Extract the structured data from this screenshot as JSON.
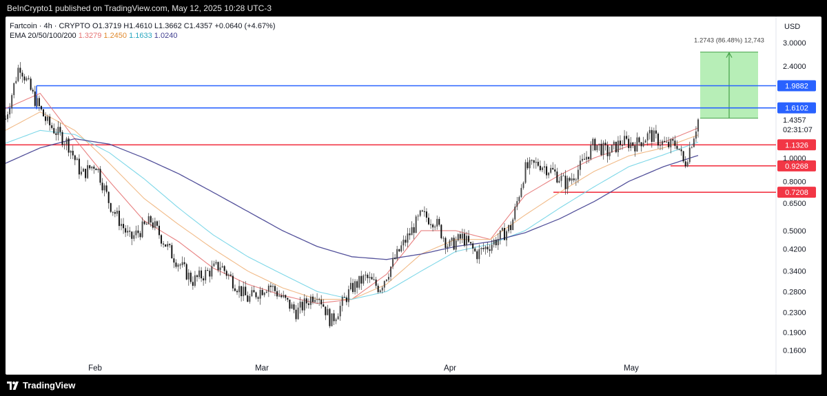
{
  "header": {
    "publisher_line": "BeInCrypto1 published on TradingView.com, May 12, 2025 10:28 UTC-3"
  },
  "footer": {
    "brand": "TradingView",
    "logo_icon": "tradingview-logo-icon"
  },
  "legend": {
    "symbol_line": "Fartcoin · 4h · CRYPTO",
    "open_label": "O",
    "open_value": "1.3719",
    "high_label": "H",
    "high_value": "1.4610",
    "low_label": "L",
    "low_value": "1.3662",
    "close_label": "C",
    "close_value": "1.4357",
    "change": "+0.0640 (+4.67%)",
    "ema_label": "EMA 20/50/100/200",
    "ema_values": [
      "1.3279",
      "1.2450",
      "1.1633",
      "1.0240"
    ]
  },
  "axis": {
    "currency": "USD",
    "price_ticks": [
      "3.0000",
      "2.4000",
      "1.0000",
      "0.8000",
      "0.6500",
      "0.5000",
      "0.4200",
      "0.3400",
      "0.2800",
      "0.2300",
      "0.1900",
      "0.1600"
    ],
    "month_labels": [
      "Feb",
      "Mar",
      "Apr",
      "May"
    ],
    "current_price": "1.4357",
    "countdown": "02:31:07"
  },
  "chart_data": {
    "type": "candlestick",
    "symbol": "Fartcoin",
    "timeframe": "4h",
    "y_scale": "log",
    "y_range": [
      0.14,
      3.6
    ],
    "x_months": [
      "Feb",
      "Mar",
      "Apr",
      "May"
    ],
    "close_path": [
      {
        "t": 0.0,
        "p": 1.45
      },
      {
        "t": 0.02,
        "p": 2.45
      },
      {
        "t": 0.04,
        "p": 1.8
      },
      {
        "t": 0.06,
        "p": 1.4
      },
      {
        "t": 0.09,
        "p": 1.15
      },
      {
        "t": 0.11,
        "p": 0.85
      },
      {
        "t": 0.13,
        "p": 0.95
      },
      {
        "t": 0.15,
        "p": 0.65
      },
      {
        "t": 0.18,
        "p": 0.46
      },
      {
        "t": 0.21,
        "p": 0.55
      },
      {
        "t": 0.24,
        "p": 0.4
      },
      {
        "t": 0.27,
        "p": 0.31
      },
      {
        "t": 0.31,
        "p": 0.36
      },
      {
        "t": 0.35,
        "p": 0.26
      },
      {
        "t": 0.38,
        "p": 0.3
      },
      {
        "t": 0.42,
        "p": 0.23
      },
      {
        "t": 0.45,
        "p": 0.28
      },
      {
        "t": 0.47,
        "p": 0.21
      },
      {
        "t": 0.5,
        "p": 0.29
      },
      {
        "t": 0.52,
        "p": 0.32
      },
      {
        "t": 0.54,
        "p": 0.29
      },
      {
        "t": 0.57,
        "p": 0.42
      },
      {
        "t": 0.6,
        "p": 0.58
      },
      {
        "t": 0.62,
        "p": 0.55
      },
      {
        "t": 0.64,
        "p": 0.43
      },
      {
        "t": 0.66,
        "p": 0.47
      },
      {
        "t": 0.68,
        "p": 0.4
      },
      {
        "t": 0.71,
        "p": 0.46
      },
      {
        "t": 0.73,
        "p": 0.52
      },
      {
        "t": 0.75,
        "p": 0.9
      },
      {
        "t": 0.77,
        "p": 0.95
      },
      {
        "t": 0.79,
        "p": 0.88
      },
      {
        "t": 0.81,
        "p": 0.78
      },
      {
        "t": 0.83,
        "p": 0.92
      },
      {
        "t": 0.85,
        "p": 1.15
      },
      {
        "t": 0.87,
        "p": 1.05
      },
      {
        "t": 0.89,
        "p": 1.17
      },
      {
        "t": 0.91,
        "p": 1.14
      },
      {
        "t": 0.93,
        "p": 1.25
      },
      {
        "t": 0.955,
        "p": 1.12
      },
      {
        "t": 0.97,
        "p": 1.15
      },
      {
        "t": 0.98,
        "p": 0.93
      },
      {
        "t": 0.99,
        "p": 1.15
      },
      {
        "t": 1.0,
        "p": 1.44
      }
    ],
    "ema_series": [
      {
        "name": "EMA 20",
        "value": 1.3279,
        "color": "#e57373",
        "path": [
          {
            "t": 0.0,
            "p": 1.6
          },
          {
            "t": 0.05,
            "p": 1.85
          },
          {
            "t": 0.1,
            "p": 1.2
          },
          {
            "t": 0.15,
            "p": 0.8
          },
          {
            "t": 0.2,
            "p": 0.55
          },
          {
            "t": 0.25,
            "p": 0.45
          },
          {
            "t": 0.3,
            "p": 0.35
          },
          {
            "t": 0.35,
            "p": 0.3
          },
          {
            "t": 0.4,
            "p": 0.27
          },
          {
            "t": 0.45,
            "p": 0.25
          },
          {
            "t": 0.5,
            "p": 0.26
          },
          {
            "t": 0.55,
            "p": 0.33
          },
          {
            "t": 0.6,
            "p": 0.5
          },
          {
            "t": 0.65,
            "p": 0.5
          },
          {
            "t": 0.7,
            "p": 0.46
          },
          {
            "t": 0.75,
            "p": 0.7
          },
          {
            "t": 0.8,
            "p": 0.85
          },
          {
            "t": 0.85,
            "p": 1.0
          },
          {
            "t": 0.9,
            "p": 1.12
          },
          {
            "t": 0.95,
            "p": 1.16
          },
          {
            "t": 1.0,
            "p": 1.33
          }
        ]
      },
      {
        "name": "EMA 50",
        "value": 1.245,
        "color": "#f0b27a",
        "path": [
          {
            "t": 0.0,
            "p": 1.3
          },
          {
            "t": 0.05,
            "p": 1.55
          },
          {
            "t": 0.1,
            "p": 1.3
          },
          {
            "t": 0.15,
            "p": 0.95
          },
          {
            "t": 0.2,
            "p": 0.68
          },
          {
            "t": 0.25,
            "p": 0.53
          },
          {
            "t": 0.3,
            "p": 0.42
          },
          {
            "t": 0.35,
            "p": 0.34
          },
          {
            "t": 0.4,
            "p": 0.29
          },
          {
            "t": 0.45,
            "p": 0.26
          },
          {
            "t": 0.5,
            "p": 0.26
          },
          {
            "t": 0.55,
            "p": 0.3
          },
          {
            "t": 0.6,
            "p": 0.4
          },
          {
            "t": 0.65,
            "p": 0.46
          },
          {
            "t": 0.7,
            "p": 0.46
          },
          {
            "t": 0.75,
            "p": 0.58
          },
          {
            "t": 0.8,
            "p": 0.72
          },
          {
            "t": 0.85,
            "p": 0.88
          },
          {
            "t": 0.9,
            "p": 1.02
          },
          {
            "t": 0.95,
            "p": 1.1
          },
          {
            "t": 1.0,
            "p": 1.245
          }
        ]
      },
      {
        "name": "EMA 100",
        "value": 1.1633,
        "color": "#6fd3e6",
        "path": [
          {
            "t": 0.0,
            "p": 1.15
          },
          {
            "t": 0.05,
            "p": 1.3
          },
          {
            "t": 0.1,
            "p": 1.25
          },
          {
            "t": 0.15,
            "p": 1.05
          },
          {
            "t": 0.2,
            "p": 0.82
          },
          {
            "t": 0.25,
            "p": 0.62
          },
          {
            "t": 0.3,
            "p": 0.48
          },
          {
            "t": 0.35,
            "p": 0.39
          },
          {
            "t": 0.4,
            "p": 0.33
          },
          {
            "t": 0.45,
            "p": 0.28
          },
          {
            "t": 0.5,
            "p": 0.26
          },
          {
            "t": 0.55,
            "p": 0.28
          },
          {
            "t": 0.6,
            "p": 0.34
          },
          {
            "t": 0.65,
            "p": 0.41
          },
          {
            "t": 0.7,
            "p": 0.44
          },
          {
            "t": 0.75,
            "p": 0.5
          },
          {
            "t": 0.8,
            "p": 0.62
          },
          {
            "t": 0.85,
            "p": 0.76
          },
          {
            "t": 0.9,
            "p": 0.92
          },
          {
            "t": 0.95,
            "p": 1.03
          },
          {
            "t": 1.0,
            "p": 1.163
          }
        ]
      },
      {
        "name": "EMA 200",
        "value": 1.024,
        "color": "#3f3d8f",
        "path": [
          {
            "t": 0.0,
            "p": 0.95
          },
          {
            "t": 0.05,
            "p": 1.1
          },
          {
            "t": 0.1,
            "p": 1.2
          },
          {
            "t": 0.15,
            "p": 1.14
          },
          {
            "t": 0.2,
            "p": 1.0
          },
          {
            "t": 0.25,
            "p": 0.86
          },
          {
            "t": 0.3,
            "p": 0.72
          },
          {
            "t": 0.35,
            "p": 0.6
          },
          {
            "t": 0.4,
            "p": 0.5
          },
          {
            "t": 0.45,
            "p": 0.43
          },
          {
            "t": 0.5,
            "p": 0.39
          },
          {
            "t": 0.55,
            "p": 0.38
          },
          {
            "t": 0.6,
            "p": 0.4
          },
          {
            "t": 0.65,
            "p": 0.43
          },
          {
            "t": 0.7,
            "p": 0.45
          },
          {
            "t": 0.75,
            "p": 0.49
          },
          {
            "t": 0.8,
            "p": 0.56
          },
          {
            "t": 0.85,
            "p": 0.66
          },
          {
            "t": 0.9,
            "p": 0.8
          },
          {
            "t": 0.95,
            "p": 0.92
          },
          {
            "t": 1.0,
            "p": 1.024
          }
        ]
      }
    ],
    "resistance_levels": [
      {
        "value": 1.9882,
        "label": "1.9882",
        "color": "#2962ff"
      },
      {
        "value": 1.6102,
        "label": "1.6102",
        "color": "#2962ff"
      }
    ],
    "support_levels": [
      {
        "value": 1.1326,
        "label": "1.1326",
        "color": "#f23645"
      },
      {
        "value": 0.9268,
        "label": "0.9268",
        "color": "#f23645"
      },
      {
        "value": 0.7208,
        "label": "0.7208",
        "color": "#f23645"
      }
    ],
    "target_box": {
      "from": 1.46,
      "to": 2.74,
      "label": "1.2743 (86.48%) 12,743",
      "color": "#7be07b"
    }
  }
}
